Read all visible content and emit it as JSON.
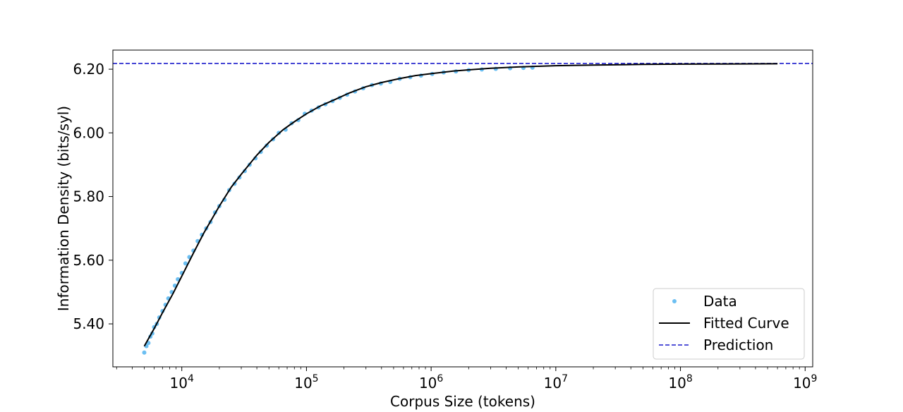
{
  "chart_data": {
    "type": "scatter",
    "xlabel": "Corpus Size (tokens)",
    "ylabel": "Information Density (bits/syl)",
    "x_scale": "log",
    "xlim": [
      2800,
      1150000000
    ],
    "ylim": [
      5.265,
      6.26
    ],
    "x_ticks": [
      {
        "value": 10000,
        "base": "10",
        "exp": "4"
      },
      {
        "value": 100000,
        "base": "10",
        "exp": "5"
      },
      {
        "value": 1000000,
        "base": "10",
        "exp": "6"
      },
      {
        "value": 10000000,
        "base": "10",
        "exp": "7"
      },
      {
        "value": 100000000,
        "base": "10",
        "exp": "8"
      },
      {
        "value": 1000000000,
        "base": "10",
        "exp": "9"
      }
    ],
    "y_ticks": [
      {
        "value": 5.4,
        "label": "5.40"
      },
      {
        "value": 5.6,
        "label": "5.60"
      },
      {
        "value": 5.8,
        "label": "5.80"
      },
      {
        "value": 6.0,
        "label": "6.00"
      },
      {
        "value": 6.2,
        "label": "6.20"
      }
    ],
    "grid": false,
    "legend_position": "bottom-right",
    "series": [
      {
        "name": "Data",
        "kind": "points",
        "color": "#6cbff2",
        "points": [
          [
            5000,
            5.31
          ],
          [
            5200,
            5.33
          ],
          [
            5400,
            5.34
          ],
          [
            5600,
            5.36
          ],
          [
            5800,
            5.37
          ],
          [
            6000,
            5.39
          ],
          [
            6300,
            5.4
          ],
          [
            6600,
            5.42
          ],
          [
            7000,
            5.44
          ],
          [
            7400,
            5.46
          ],
          [
            7800,
            5.48
          ],
          [
            8300,
            5.5
          ],
          [
            8800,
            5.52
          ],
          [
            9300,
            5.54
          ],
          [
            10000,
            5.56
          ],
          [
            10700,
            5.59
          ],
          [
            11500,
            5.61
          ],
          [
            12400,
            5.63
          ],
          [
            13400,
            5.66
          ],
          [
            14500,
            5.68
          ],
          [
            15700,
            5.7
          ],
          [
            17000,
            5.72
          ],
          [
            18500,
            5.75
          ],
          [
            20000,
            5.77
          ],
          [
            22000,
            5.79
          ],
          [
            24000,
            5.82
          ],
          [
            26500,
            5.84
          ],
          [
            29000,
            5.86
          ],
          [
            32000,
            5.88
          ],
          [
            35000,
            5.9
          ],
          [
            39000,
            5.92
          ],
          [
            43000,
            5.94
          ],
          [
            48000,
            5.96
          ],
          [
            54000,
            5.98
          ],
          [
            60000,
            6.0
          ],
          [
            68000,
            6.01
          ],
          [
            76000,
            6.03
          ],
          [
            86000,
            6.04
          ],
          [
            97000,
            6.06
          ],
          [
            110000,
            6.07
          ],
          [
            125000,
            6.08
          ],
          [
            142000,
            6.09
          ],
          [
            162000,
            6.1
          ],
          [
            185000,
            6.11
          ],
          [
            212000,
            6.12
          ],
          [
            245000,
            6.13
          ],
          [
            285000,
            6.14
          ],
          [
            335000,
            6.15
          ],
          [
            395000,
            6.155
          ],
          [
            470000,
            6.16
          ],
          [
            560000,
            6.17
          ],
          [
            680000,
            6.175
          ],
          [
            830000,
            6.18
          ],
          [
            1020000,
            6.185
          ],
          [
            1260000,
            6.19
          ],
          [
            1580000,
            6.193
          ],
          [
            2000000,
            6.197
          ],
          [
            2550000,
            6.199
          ],
          [
            3300000,
            6.201
          ],
          [
            4300000,
            6.203
          ],
          [
            5500000,
            6.204
          ],
          [
            6500000,
            6.205
          ]
        ]
      },
      {
        "name": "Fitted Curve",
        "kind": "line",
        "color": "#000000",
        "points": [
          [
            5000,
            5.33
          ],
          [
            6000,
            5.385
          ],
          [
            7000,
            5.435
          ],
          [
            8500,
            5.495
          ],
          [
            10000,
            5.55
          ],
          [
            12500,
            5.625
          ],
          [
            15000,
            5.685
          ],
          [
            20000,
            5.77
          ],
          [
            25000,
            5.83
          ],
          [
            30000,
            5.87
          ],
          [
            40000,
            5.93
          ],
          [
            50000,
            5.97
          ],
          [
            65000,
            6.01
          ],
          [
            80000,
            6.035
          ],
          [
            100000,
            6.06
          ],
          [
            130000,
            6.085
          ],
          [
            170000,
            6.105
          ],
          [
            220000,
            6.125
          ],
          [
            300000,
            6.145
          ],
          [
            400000,
            6.158
          ],
          [
            550000,
            6.17
          ],
          [
            750000,
            6.18
          ],
          [
            1000000,
            6.186
          ],
          [
            1500000,
            6.194
          ],
          [
            2000000,
            6.198
          ],
          [
            3000000,
            6.203
          ],
          [
            5000000,
            6.207
          ],
          [
            7000000,
            6.209
          ],
          [
            10000000,
            6.211
          ],
          [
            20000000,
            6.213
          ],
          [
            50000000,
            6.215
          ],
          [
            100000000,
            6.216
          ],
          [
            300000000,
            6.2165
          ],
          [
            600000000,
            6.217
          ]
        ]
      },
      {
        "name": "Prediction",
        "kind": "hline",
        "color": "#1a1acc",
        "value": 6.218
      }
    ]
  }
}
